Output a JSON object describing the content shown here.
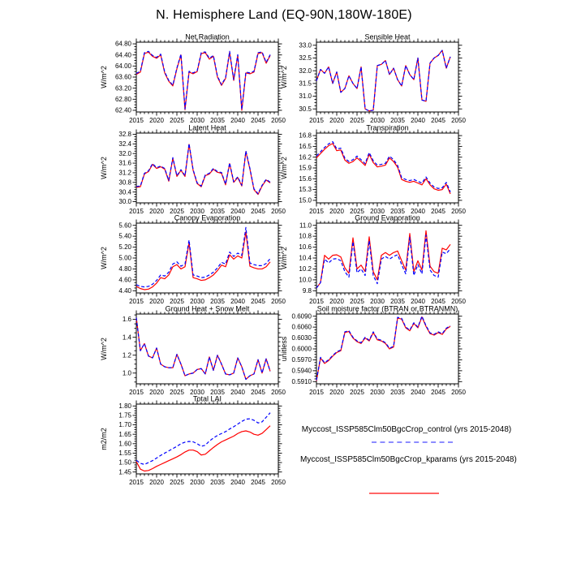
{
  "page_title": "N. Hemisphere Land (EQ-90N,180W-180E)",
  "legend": {
    "entries": [
      {
        "id": "control",
        "label": "Myccost_ISSP585Clm50BgcCrop_control (yrs 2015-2048)",
        "color": "#0000ff",
        "style": "dashed"
      },
      {
        "id": "kparams",
        "label": "Myccost_ISSP585Clm50BgcCrop_kparams (yrs 2015-2048)",
        "color": "#ff0000",
        "style": "solid"
      }
    ]
  },
  "chart_data": {
    "type": "line",
    "x_start": 2015,
    "x_end": 2048,
    "xlim": [
      2015,
      2050
    ],
    "x_ticks": [
      "2015",
      "2020",
      "2025",
      "2030",
      "2035",
      "2040",
      "2045",
      "2050"
    ],
    "grid": "off",
    "legend_position": "bottom-right",
    "series_styles": {
      "control": {
        "color": "#0000ff",
        "dash": "4,2.5",
        "width": 1.2
      },
      "kparams": {
        "color": "#ff0000",
        "dash": "",
        "width": 1.2
      }
    },
    "panels": [
      {
        "id": "net-radiation",
        "title": "Net Radiation",
        "ylabel": "W/m^2",
        "ylim": [
          62.34,
          64.86
        ],
        "yticks": [
          "62.40",
          "62.80",
          "63.20",
          "63.60",
          "64.00",
          "64.40",
          "64.80"
        ],
        "series": [
          {
            "name": "kparams",
            "values": [
              63.7,
              63.78,
              64.45,
              64.5,
              64.35,
              64.28,
              64.4,
              63.75,
              63.45,
              63.28,
              63.9,
              64.4,
              62.42,
              63.78,
              63.72,
              63.8,
              64.45,
              64.48,
              64.25,
              64.35,
              63.6,
              63.3,
              63.55,
              64.5,
              63.48,
              64.38,
              62.4,
              63.75,
              63.72,
              63.78,
              64.45,
              64.48,
              64.1,
              64.38
            ]
          },
          {
            "name": "control",
            "values": [
              63.73,
              63.81,
              64.48,
              64.53,
              64.38,
              64.31,
              64.43,
              63.78,
              63.48,
              63.31,
              63.93,
              64.43,
              62.45,
              63.81,
              63.75,
              63.83,
              64.48,
              64.51,
              64.28,
              64.38,
              63.63,
              63.33,
              63.58,
              64.53,
              63.51,
              64.41,
              62.43,
              63.78,
              63.75,
              63.81,
              64.48,
              64.51,
              64.13,
              64.41
            ]
          }
        ]
      },
      {
        "id": "sensible-heat",
        "title": "Sensible Heat",
        "ylabel": "W/m^2",
        "ylim": [
          30.38,
          33.12
        ],
        "yticks": [
          "30.5",
          "31.0",
          "31.5",
          "32.0",
          "32.5",
          "33.0"
        ],
        "series": [
          {
            "name": "kparams",
            "values": [
              31.6,
              32.05,
              31.9,
              32.15,
              31.5,
              31.95,
              31.15,
              31.3,
              31.8,
              31.5,
              31.3,
              32.15,
              30.5,
              30.42,
              30.45,
              32.2,
              32.25,
              32.4,
              31.85,
              32.1,
              31.65,
              31.4,
              32.2,
              31.85,
              31.65,
              32.5,
              30.85,
              30.8,
              32.3,
              32.5,
              32.6,
              32.8,
              32.1,
              32.55
            ]
          },
          {
            "name": "control",
            "values": [
              31.6,
              32.05,
              31.9,
              32.15,
              31.5,
              31.95,
              31.15,
              31.3,
              31.8,
              31.5,
              31.3,
              32.15,
              30.5,
              30.42,
              30.45,
              32.2,
              32.25,
              32.4,
              31.85,
              32.1,
              31.65,
              31.4,
              32.2,
              31.85,
              31.65,
              32.5,
              30.85,
              30.8,
              32.3,
              32.5,
              32.6,
              32.8,
              32.1,
              32.55
            ]
          }
        ]
      },
      {
        "id": "latent-heat",
        "title": "Latent Heat",
        "ylabel": "W/m^2",
        "ylim": [
          29.95,
          32.85
        ],
        "yticks": [
          "30.0",
          "30.4",
          "30.8",
          "31.2",
          "31.6",
          "32.0",
          "32.4",
          "32.8"
        ],
        "series": [
          {
            "name": "kparams",
            "values": [
              30.6,
              30.62,
              31.15,
              31.25,
              31.55,
              31.38,
              31.45,
              31.35,
              30.85,
              31.8,
              31.05,
              31.3,
              31.05,
              32.38,
              31.3,
              30.75,
              30.62,
              31.08,
              31.15,
              31.35,
              31.22,
              31.18,
              30.7,
              31.58,
              30.8,
              31.0,
              30.65,
              32.08,
              31.35,
              30.5,
              30.3,
              30.65,
              30.9,
              30.78
            ]
          },
          {
            "name": "control",
            "values": [
              30.63,
              30.65,
              31.18,
              31.28,
              31.58,
              31.41,
              31.48,
              31.38,
              30.88,
              31.83,
              31.08,
              31.33,
              31.08,
              32.41,
              31.33,
              30.78,
              30.65,
              31.11,
              31.18,
              31.38,
              31.25,
              31.21,
              30.73,
              31.61,
              30.83,
              31.03,
              30.68,
              32.11,
              31.38,
              30.53,
              30.33,
              30.68,
              30.93,
              30.81
            ]
          }
        ]
      },
      {
        "id": "transpiration",
        "title": "Transpiration",
        "ylabel": "W/m^2",
        "ylim": [
          14.93,
          16.87
        ],
        "yticks": [
          "15.0",
          "15.3",
          "15.6",
          "15.9",
          "16.2",
          "16.5",
          "16.8"
        ],
        "series": [
          {
            "name": "kparams",
            "values": [
              16.18,
              16.3,
              16.42,
              16.52,
              16.58,
              16.38,
              16.4,
              16.12,
              16.03,
              16.08,
              16.18,
              16.08,
              15.97,
              16.28,
              16.05,
              15.93,
              15.95,
              15.98,
              16.18,
              16.08,
              15.92,
              15.58,
              15.53,
              15.5,
              15.53,
              15.48,
              15.43,
              15.6,
              15.43,
              15.32,
              15.28,
              15.3,
              15.45,
              15.18
            ]
          },
          {
            "name": "control",
            "values": [
              16.23,
              16.35,
              16.47,
              16.57,
              16.63,
              16.43,
              16.45,
              16.17,
              16.08,
              16.13,
              16.23,
              16.13,
              16.02,
              16.33,
              16.1,
              15.98,
              16.0,
              16.03,
              16.23,
              16.13,
              15.97,
              15.63,
              15.58,
              15.55,
              15.58,
              15.53,
              15.48,
              15.65,
              15.48,
              15.37,
              15.33,
              15.35,
              15.5,
              15.23
            ]
          }
        ]
      },
      {
        "id": "canopy-evaporation",
        "title": "Canopy Evaporation",
        "ylabel": "W/m^2",
        "ylim": [
          4.36,
          5.64
        ],
        "yticks": [
          "4.40",
          "4.60",
          "4.80",
          "5.00",
          "5.20",
          "5.40",
          "5.60"
        ],
        "series": [
          {
            "name": "kparams",
            "values": [
              4.48,
              4.44,
              4.42,
              4.43,
              4.47,
              4.54,
              4.64,
              4.62,
              4.69,
              4.84,
              4.88,
              4.8,
              4.84,
              5.28,
              4.64,
              4.62,
              4.59,
              4.6,
              4.64,
              4.69,
              4.77,
              4.87,
              4.84,
              5.06,
              4.98,
              5.04,
              5.0,
              5.48,
              4.85,
              4.82,
              4.8,
              4.8,
              4.84,
              4.93
            ]
          },
          {
            "name": "control",
            "values": [
              4.51,
              4.48,
              4.47,
              4.48,
              4.52,
              4.59,
              4.69,
              4.67,
              4.74,
              4.89,
              4.93,
              4.85,
              4.89,
              5.33,
              4.69,
              4.67,
              4.64,
              4.65,
              4.69,
              4.74,
              4.82,
              4.92,
              4.89,
              5.11,
              5.03,
              5.09,
              5.05,
              5.56,
              4.91,
              4.88,
              4.86,
              4.86,
              4.9,
              4.99
            ]
          }
        ]
      },
      {
        "id": "ground-evaporation",
        "title": "Ground Evaporation",
        "ylabel": "W/m^2",
        "ylim": [
          9.76,
          11.04
        ],
        "yticks": [
          "9.8",
          "10.0",
          "10.2",
          "10.4",
          "10.6",
          "10.8",
          "11.0"
        ],
        "series": [
          {
            "name": "kparams",
            "values": [
              9.85,
              9.95,
              10.45,
              10.38,
              10.45,
              10.46,
              10.42,
              10.22,
              10.12,
              10.77,
              10.2,
              10.27,
              10.15,
              10.79,
              10.15,
              10.0,
              10.45,
              10.5,
              10.45,
              10.5,
              10.53,
              10.35,
              10.18,
              10.85,
              10.15,
              10.35,
              10.18,
              10.9,
              10.25,
              10.15,
              10.12,
              10.58,
              10.55,
              10.65
            ]
          },
          {
            "name": "control",
            "values": [
              9.85,
              9.95,
              10.38,
              10.31,
              10.38,
              10.39,
              10.35,
              10.15,
              10.05,
              10.7,
              10.13,
              10.2,
              10.08,
              10.72,
              10.08,
              9.93,
              10.38,
              10.43,
              10.38,
              10.43,
              10.46,
              10.28,
              10.11,
              10.78,
              10.08,
              10.28,
              10.11,
              10.82,
              10.18,
              10.08,
              10.05,
              10.51,
              10.48,
              10.57
            ]
          }
        ]
      },
      {
        "id": "ground-heat-snow-melt",
        "title": "Ground Heat + Snow Melt",
        "ylabel": "W/m^2",
        "ylim": [
          0.88,
          1.66
        ],
        "yticks": [
          "1.0",
          "1.2",
          "1.4",
          "1.6"
        ],
        "series": [
          {
            "name": "kparams",
            "values": [
              1.62,
              1.25,
              1.33,
              1.19,
              1.17,
              1.28,
              1.1,
              1.07,
              1.06,
              1.06,
              1.21,
              1.1,
              0.97,
              0.99,
              1.0,
              1.04,
              1.05,
              0.99,
              1.18,
              1.03,
              1.2,
              1.1,
              0.99,
              0.98,
              1.0,
              1.17,
              1.07,
              0.93,
              0.97,
              0.99,
              1.15,
              1.0,
              1.16,
              1.02
            ]
          },
          {
            "name": "control",
            "values": [
              1.62,
              1.25,
              1.33,
              1.19,
              1.17,
              1.28,
              1.1,
              1.07,
              1.06,
              1.06,
              1.21,
              1.1,
              0.97,
              0.99,
              1.0,
              1.04,
              1.05,
              0.99,
              1.18,
              1.03,
              1.2,
              1.1,
              0.99,
              0.98,
              1.0,
              1.17,
              1.07,
              0.93,
              0.97,
              0.99,
              1.15,
              1.0,
              1.16,
              1.02
            ]
          }
        ]
      },
      {
        "id": "soil-moisture-factor",
        "title": "Soil moisture factor (BTRAN or BTRANMN)",
        "ylabel": "unitless",
        "ylim": [
          0.5904,
          0.6096
        ],
        "yticks": [
          "0.5910",
          "0.5940",
          "0.5970",
          "0.6000",
          "0.6030",
          "0.6060",
          "0.6090"
        ],
        "series": [
          {
            "name": "kparams",
            "values": [
              0.5912,
              0.5975,
              0.596,
              0.5968,
              0.598,
              0.599,
              0.5995,
              0.6045,
              0.6048,
              0.603,
              0.602,
              0.6015,
              0.603,
              0.6022,
              0.6045,
              0.6025,
              0.6022,
              0.6015,
              0.6,
              0.6005,
              0.6085,
              0.6082,
              0.6058,
              0.605,
              0.607,
              0.6058,
              0.6088,
              0.6062,
              0.6042,
              0.6038,
              0.6045,
              0.604,
              0.6055,
              0.6062
            ]
          },
          {
            "name": "control",
            "values": [
              0.5914,
              0.5977,
              0.5962,
              0.597,
              0.5982,
              0.5992,
              0.5997,
              0.6047,
              0.605,
              0.6032,
              0.6022,
              0.6017,
              0.6032,
              0.6024,
              0.6047,
              0.6027,
              0.6024,
              0.6017,
              0.6002,
              0.6007,
              0.6087,
              0.6084,
              0.606,
              0.6052,
              0.6072,
              0.606,
              0.609,
              0.6064,
              0.6044,
              0.604,
              0.6047,
              0.6042,
              0.6057,
              0.6064
            ]
          }
        ]
      },
      {
        "id": "total-lai",
        "title": "Total LAI",
        "ylabel": "m2/m2",
        "ylim": [
          1.44,
          1.81
        ],
        "yticks": [
          "1.45",
          "1.50",
          "1.55",
          "1.60",
          "1.65",
          "1.70",
          "1.75",
          "1.80"
        ],
        "series": [
          {
            "name": "kparams",
            "values": [
              1.505,
              1.465,
              1.455,
              1.458,
              1.468,
              1.48,
              1.49,
              1.5,
              1.51,
              1.52,
              1.53,
              1.542,
              1.556,
              1.566,
              1.566,
              1.558,
              1.54,
              1.544,
              1.562,
              1.58,
              1.596,
              1.61,
              1.62,
              1.63,
              1.64,
              1.654,
              1.664,
              1.668,
              1.662,
              1.65,
              1.645,
              1.655,
              1.675,
              1.695
            ]
          },
          {
            "name": "control",
            "values": [
              1.512,
              1.496,
              1.49,
              1.5,
              1.51,
              1.524,
              1.538,
              1.55,
              1.562,
              1.574,
              1.586,
              1.6,
              1.608,
              1.612,
              1.61,
              1.6,
              1.586,
              1.592,
              1.614,
              1.63,
              1.644,
              1.654,
              1.664,
              1.678,
              1.69,
              1.704,
              1.718,
              1.73,
              1.732,
              1.724,
              1.71,
              1.716,
              1.74,
              1.764
            ]
          }
        ]
      }
    ]
  }
}
